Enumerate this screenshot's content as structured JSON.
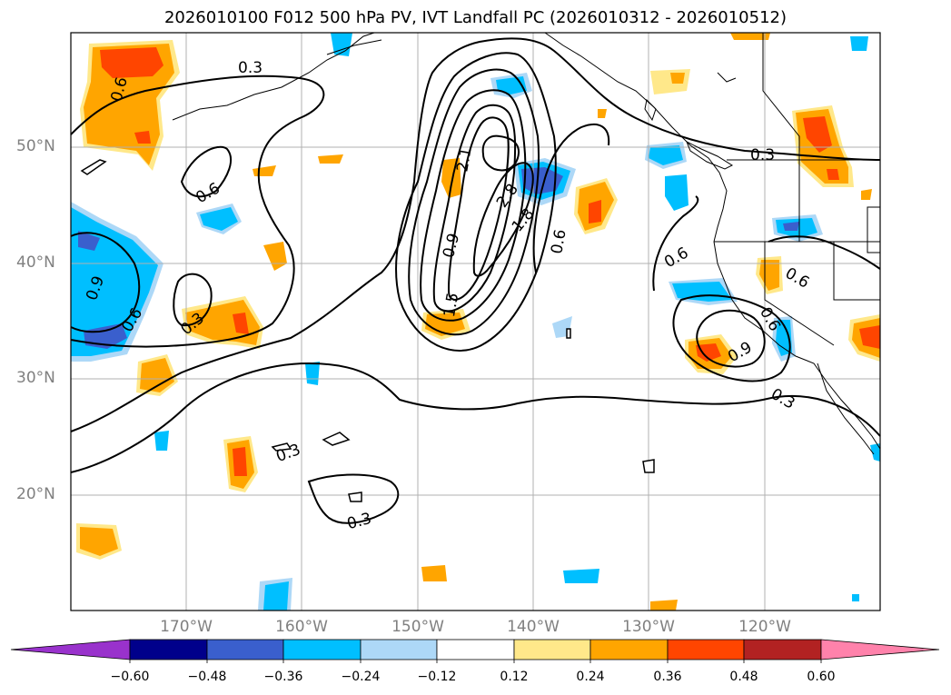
{
  "title": "2026010100 F012 500 hPa PV, IVT Landfall PC (2026010312 - 2026010512)",
  "map": {
    "lat_labels": [
      "50°N",
      "40°N",
      "30°N",
      "20°N"
    ],
    "lon_labels": [
      "170°W",
      "160°W",
      "150°W",
      "140°W",
      "130°W",
      "120°W"
    ],
    "contour_labels": [
      "0.3",
      "0.6",
      "0.6",
      "0.9",
      "0.6",
      "0.3",
      "0.3",
      "0.3",
      "0.9",
      "1.5",
      "2.1",
      "2.8",
      "1.8",
      "0.6",
      "0.3",
      "0.6",
      "0.6",
      "0.6",
      "0.9",
      "0.3"
    ]
  },
  "colorbar": {
    "ticks": [
      "−0.60",
      "−0.48",
      "−0.36",
      "−0.24",
      "−0.12",
      "0.12",
      "0.24",
      "0.36",
      "0.48",
      "0.60"
    ],
    "colors": [
      "#9932cc",
      "#00008b",
      "#3a5fcd",
      "#00bfff",
      "#add8f7",
      "#ffffff",
      "#ffe88a",
      "#ffa500",
      "#ff4500",
      "#b22222",
      "#ff82ab"
    ]
  },
  "colors": {
    "gridline": "#b0b0b0",
    "contour": "#000000",
    "label": "#808080"
  }
}
